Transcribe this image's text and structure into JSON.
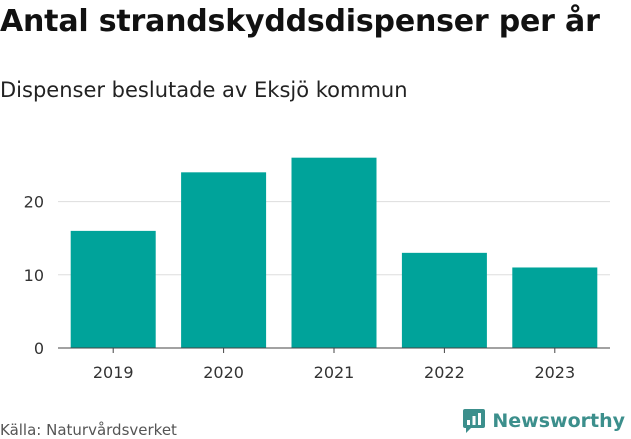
{
  "chart_data": {
    "type": "bar",
    "title": "Antal strandskyddsdispenser per år",
    "subtitle": "Dispenser beslutade av Eksjö kommun",
    "categories": [
      "2019",
      "2020",
      "2021",
      "2022",
      "2023"
    ],
    "values": [
      16,
      24,
      26,
      13,
      11
    ],
    "xlabel": "",
    "ylabel": "",
    "ylim": [
      0,
      30
    ],
    "yticks": [
      0,
      10,
      20
    ],
    "grid": true,
    "bar_color": "#00a39a",
    "source": "Källa: Naturvårdsverket"
  },
  "brand": {
    "name": "Newsworthy",
    "color": "#3c8f8c"
  }
}
